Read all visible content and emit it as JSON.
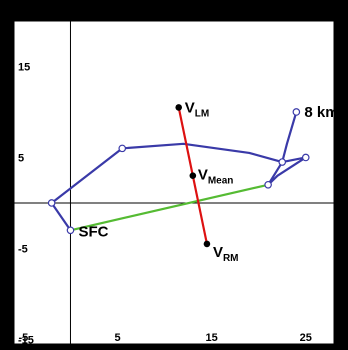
{
  "chart_data": {
    "type": "line",
    "x_ticks": [
      "-5",
      "5",
      "15",
      "25"
    ],
    "y_ticks": [
      "15",
      "5",
      "-5",
      "-15"
    ],
    "xlim": [
      -6,
      28
    ],
    "ylim": [
      -15.5,
      20
    ],
    "hodograph": {
      "color": "#3a3aa8",
      "points": [
        {
          "x": 0,
          "y": -3
        },
        {
          "x": -2,
          "y": 0
        },
        {
          "x": 5.5,
          "y": 6
        },
        {
          "x": 12,
          "y": 6.5
        },
        {
          "x": 19,
          "y": 5.5
        },
        {
          "x": 22.5,
          "y": 4.5
        },
        {
          "x": 25,
          "y": 5
        },
        {
          "x": 22,
          "y": 3
        },
        {
          "x": 21,
          "y": 2
        },
        {
          "x": 22.5,
          "y": 4.5
        },
        {
          "x": 23,
          "y": 6.5
        },
        {
          "x": 24,
          "y": 10
        }
      ],
      "open_markers": [
        0,
        1,
        2,
        5,
        6,
        8,
        11
      ]
    },
    "shear_line": {
      "color": "#55bb33",
      "from": {
        "x": 0,
        "y": -3
      },
      "to": {
        "x": 21,
        "y": 2
      }
    },
    "motion_line": {
      "color": "#dd1111",
      "from": {
        "x": 11.5,
        "y": 10.5
      },
      "to": {
        "x": 14.5,
        "y": -4.5
      }
    },
    "labels": {
      "sfc": "SFC",
      "top": "8 km",
      "v": "V",
      "lm_sub": "LM",
      "mean_sub": "Mean",
      "rm_sub": "RM"
    },
    "vectors": {
      "lm": {
        "x": 11.5,
        "y": 10.5
      },
      "mean": {
        "x": 13,
        "y": 3
      },
      "rm": {
        "x": 14.5,
        "y": -4.5
      }
    }
  }
}
